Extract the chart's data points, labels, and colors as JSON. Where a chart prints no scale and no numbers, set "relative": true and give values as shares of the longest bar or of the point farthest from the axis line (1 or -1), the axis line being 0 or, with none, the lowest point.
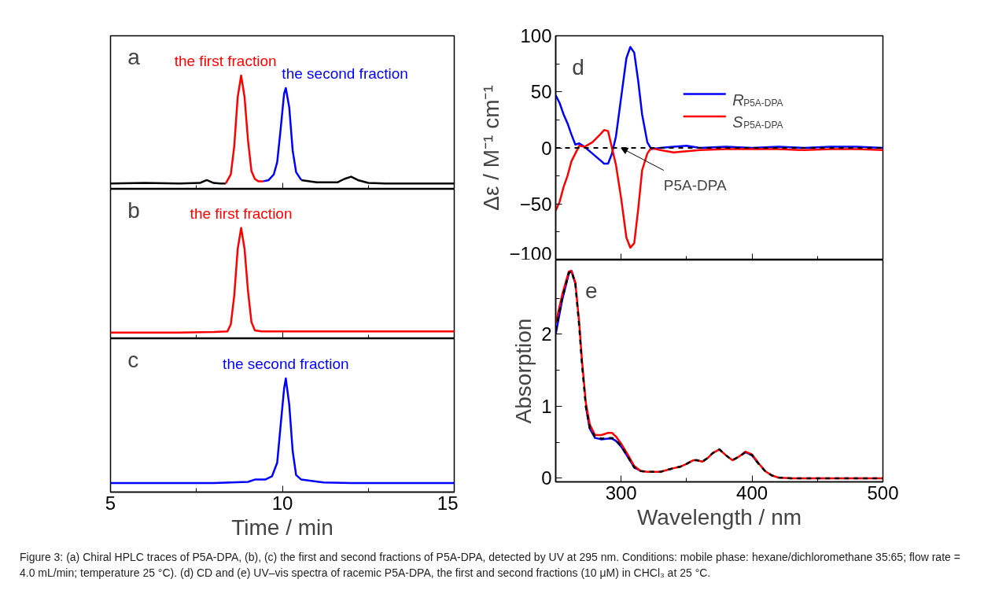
{
  "chart_data": [
    {
      "type": "line",
      "relative": true,
      "tick_labels": false,
      "xlim": [
        5,
        15
      ],
      "xticks": [
        5,
        10,
        15,
        {
          "value": 7.5,
          "label": null
        },
        {
          "value": 12.5,
          "label": null
        }
      ],
      "annotations": [
        "a"
      ],
      "series": [
        {
          "color": "#000000",
          "x": [
            5,
            6,
            7,
            7.6,
            7.8,
            8.0,
            8.2,
            8.35,
            9.5,
            10.55,
            11,
            11.6,
            11.8,
            12.0,
            12.2,
            12.5,
            13,
            14,
            15
          ],
          "values": [
            0.05,
            0.055,
            0.05,
            0.055,
            0.08,
            0.055,
            0.05,
            0.05,
            null,
            0.08,
            0.06,
            0.06,
            0.09,
            0.11,
            0.08,
            0.055,
            0.05,
            0.05,
            0.05
          ]
        },
        {
          "name": "the first fraction",
          "color": "#ff0000",
          "x": [
            8.35,
            8.5,
            8.6,
            8.7,
            8.8,
            8.9,
            9.0,
            9.1,
            9.2,
            9.3,
            9.45
          ],
          "values": [
            0.05,
            0.13,
            0.38,
            0.81,
            1,
            0.81,
            0.43,
            0.16,
            0.09,
            0.07,
            0.07
          ]
        },
        {
          "name": "the second fraction",
          "color": "#0000ff",
          "x": [
            9.45,
            9.6,
            9.75,
            9.85,
            9.95,
            10.05,
            10.1,
            10.2,
            10.3,
            10.4,
            10.55
          ],
          "values": [
            0.07,
            0.08,
            0.13,
            0.24,
            0.53,
            0.84,
            0.89,
            0.72,
            0.34,
            0.15,
            0.08
          ]
        }
      ]
    },
    {
      "type": "line",
      "relative": true,
      "tick_labels": false,
      "xlim": [
        5,
        15
      ],
      "xticks": [
        5,
        10,
        15,
        {
          "value": 7.5,
          "label": null
        },
        {
          "value": 12.5,
          "label": null
        }
      ],
      "annotations": [
        "b"
      ],
      "series": [
        {
          "name": "the first fraction",
          "color": "#ff0000",
          "x": [
            5,
            7,
            8,
            8.4,
            8.5,
            8.6,
            8.7,
            8.8,
            8.9,
            9.0,
            9.1,
            9.2,
            9.4,
            10,
            11,
            13,
            15
          ],
          "values": [
            0.055,
            0.055,
            0.06,
            0.065,
            0.13,
            0.39,
            0.81,
            1,
            0.81,
            0.43,
            0.15,
            0.075,
            0.065,
            0.065,
            0.065,
            0.065,
            0.065
          ]
        }
      ]
    },
    {
      "type": "line",
      "relative": true,
      "tick_labels": "x",
      "xlim": [
        5,
        15
      ],
      "xticks": [
        5,
        10,
        15,
        {
          "value": 7.5,
          "label": null
        },
        {
          "value": 12.5,
          "label": null
        }
      ],
      "xlabel": "Time / min",
      "annotations": [
        "c"
      ],
      "series": [
        {
          "name": "the second fraction",
          "color": "#0000ff",
          "x": [
            5,
            7,
            8,
            9,
            9.2,
            9.5,
            9.7,
            9.85,
            9.95,
            10.05,
            10.1,
            10.2,
            10.3,
            10.4,
            10.55,
            10.8,
            11.2,
            12,
            15
          ],
          "values": [
            0.08,
            0.08,
            0.08,
            0.09,
            0.11,
            0.11,
            0.14,
            0.26,
            0.59,
            0.91,
            1,
            0.77,
            0.36,
            0.15,
            0.11,
            0.1,
            0.085,
            0.08,
            0.08
          ]
        }
      ]
    },
    {
      "type": "line",
      "tick_labels": "y",
      "legend": "top right",
      "xlim": [
        250,
        500
      ],
      "xticks": [
        300,
        400,
        500,
        {
          "value": 350,
          "label": null
        },
        {
          "value": 450,
          "label": null
        }
      ],
      "ylim": [
        -100,
        100
      ],
      "yticks": [
        -100,
        -50,
        0,
        50,
        100,
        {
          "value": -75,
          "label": null
        },
        {
          "value": -25,
          "label": null
        },
        {
          "value": 25,
          "label": null
        },
        {
          "value": 75,
          "label": null
        }
      ],
      "ylabel": "Δε / M⁻¹ cm⁻¹",
      "annotations": [
        "d"
      ],
      "ref_lines": [
        {
          "axis": "y",
          "value": 0,
          "label": "P5A-DPA",
          "color": "#000000",
          "line_style": "dashed"
        }
      ],
      "x": [
        250,
        253,
        256,
        259,
        262,
        265,
        268,
        272,
        278,
        284,
        287,
        290,
        293,
        296,
        300,
        304,
        307,
        310,
        313,
        316,
        320,
        323,
        330,
        340,
        350,
        360,
        380,
        400,
        420,
        440,
        460,
        480,
        500
      ],
      "series": [
        {
          "name": "R$_{P5A-DPA}$",
          "color": "#0000ff",
          "values": [
            47,
            40,
            30,
            22,
            12,
            3,
            4,
            1,
            -5,
            -11,
            -14,
            -14,
            -5,
            10,
            45,
            80,
            90,
            85,
            60,
            30,
            5,
            -1,
            0,
            1,
            2,
            0,
            1,
            0,
            1,
            0,
            1,
            1,
            0
          ]
        },
        {
          "name": "S$_{P5A-DPA}$",
          "color": "#ff0000",
          "values": [
            -56,
            -48,
            -35,
            -25,
            -12,
            -5,
            2,
            1,
            5,
            12,
            16,
            15,
            0,
            -15,
            -45,
            -80,
            -89,
            -85,
            -55,
            -20,
            -5,
            0,
            -2,
            -4,
            -3,
            -2,
            -1,
            -1,
            -1,
            -2,
            -1,
            -1,
            -2
          ]
        }
      ]
    },
    {
      "type": "line",
      "xlim": [
        250,
        500
      ],
      "xticks": [
        300,
        400,
        500,
        {
          "value": 350,
          "label": null
        },
        {
          "value": 450,
          "label": null
        }
      ],
      "ylim": [
        -0.05,
        3.03
      ],
      "yticks": [
        0,
        1,
        2,
        {
          "value": 0.5,
          "label": null
        },
        {
          "value": 1.5,
          "label": null
        },
        {
          "value": 2.5,
          "label": null
        }
      ],
      "xlabel": "Wavelength / nm",
      "ylabel": "Absorption",
      "annotations": [
        "e",
        "Figure 3: (a) Chiral HPLC traces of P5A-DPA, (b), (c) the first and second fractions of P5A-DPA, detected by UV at 295 nm. Conditions: mobile phase: hexane/dichloromethane 35:65; flow rate = 4.0 mL/min; temperature 25 °C). (d) CD and (e) UV–vis spectra of racemic P5A-DPA, the first and second fractions (10 μM) in CHCl₃ at 25 °C."
      ],
      "x": [
        250,
        255,
        260,
        262,
        265,
        268,
        270,
        273,
        276,
        280,
        285,
        290,
        293,
        296,
        300,
        305,
        310,
        315,
        320,
        330,
        340,
        345,
        350,
        355,
        358,
        362,
        366,
        370,
        375,
        380,
        385,
        390,
        395,
        400,
        405,
        410,
        415,
        420,
        430,
        450,
        500
      ],
      "series": [
        {
          "color": "#0000ff",
          "values": [
            2.0,
            2.48,
            2.84,
            2.88,
            2.7,
            null,
            null,
            1.0,
            0.69,
            0.56,
            0.54,
            0.55,
            0.55,
            0.52,
            0.44,
            0.3,
            0.15,
            0.1,
            null,
            null,
            null,
            null,
            null,
            null,
            null,
            null,
            null,
            null,
            null,
            null,
            null,
            null,
            0.36,
            0.32,
            0.2,
            null,
            null,
            null,
            null,
            null,
            null
          ]
        },
        {
          "color": "#ff0000",
          "values": [
            2.15,
            2.55,
            2.87,
            2.88,
            2.72,
            2.15,
            1.65,
            1.05,
            0.75,
            0.6,
            0.6,
            0.63,
            0.63,
            0.58,
            0.48,
            0.33,
            0.17,
            0.1,
            0.09,
            0.09,
            0.14,
            0.16,
            0.2,
            0.25,
            0.25,
            0.23,
            0.28,
            0.35,
            0.4,
            0.32,
            0.25,
            0.3,
            0.37,
            0.33,
            0.21,
            0.1,
            0.04,
            0.01,
            0,
            0,
            0
          ]
        },
        {
          "color": "#000000",
          "line_style": "dashed",
          "values": [
            2.05,
            2.5,
            2.85,
            2.88,
            2.7,
            2.1,
            1.6,
            1.0,
            0.7,
            0.58,
            0.55,
            0.56,
            0.56,
            0.53,
            0.45,
            0.3,
            0.15,
            0.1,
            0.09,
            0.09,
            0.14,
            0.16,
            0.2,
            0.25,
            0.25,
            0.23,
            0.28,
            0.35,
            0.4,
            0.32,
            0.25,
            0.3,
            0.36,
            0.32,
            0.2,
            0.1,
            0.04,
            0.01,
            0,
            0,
            0
          ]
        }
      ]
    }
  ]
}
